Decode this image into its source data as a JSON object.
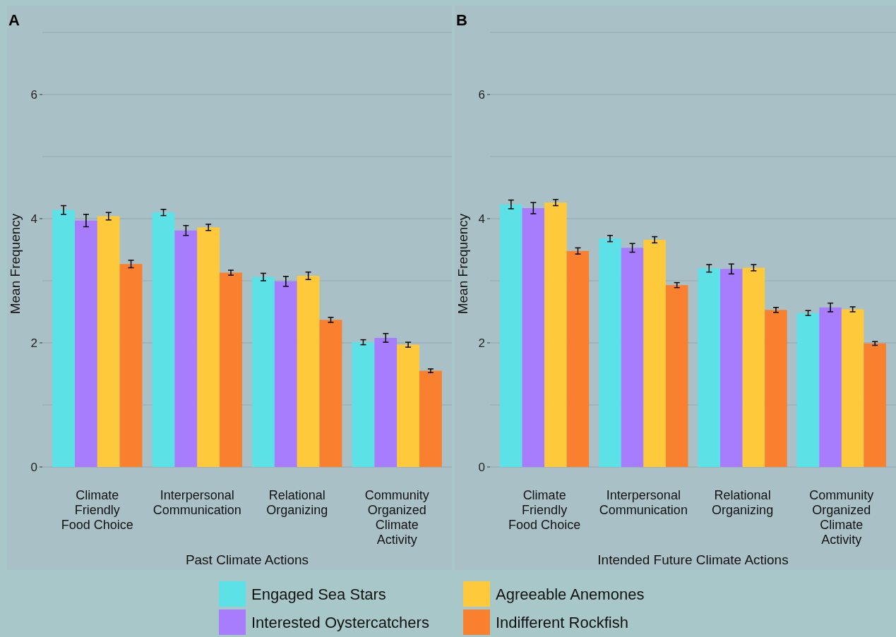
{
  "chart_data": [
    {
      "type": "bar",
      "title": "A",
      "xlabel": "Past Climate Actions",
      "ylabel": "Mean Frequency",
      "categories": [
        "Climate Friendly Food Choice",
        "Interpersonal Communication",
        "Relational Organizing",
        "Community Organized Climate Activity"
      ],
      "ylim": [
        0,
        7
      ],
      "yticks": [
        0,
        {
          "value": 1,
          "label": null
        },
        2,
        {
          "value": 3,
          "label": null
        },
        4,
        {
          "value": 5,
          "label": null
        },
        6,
        {
          "value": 7,
          "label": null
        }
      ],
      "grid": "y",
      "legend": "bottom",
      "series": [
        {
          "name": "Engaged Sea Stars",
          "color": "#5ce1e6",
          "values": [
            4.14,
            4.1,
            3.06,
            2.01
          ],
          "errors": [
            0.07,
            0.05,
            0.06,
            0.04
          ]
        },
        {
          "name": "Interested Oystercatchers",
          "color": "#a77cfd",
          "values": [
            3.97,
            3.81,
            2.99,
            2.08
          ],
          "errors": [
            0.1,
            0.08,
            0.08,
            0.07
          ]
        },
        {
          "name": "Agreeable Anemones",
          "color": "#ffc93c",
          "values": [
            4.04,
            3.86,
            3.08,
            1.97
          ],
          "errors": [
            0.06,
            0.05,
            0.06,
            0.04
          ]
        },
        {
          "name": "Indifferent Rockfish",
          "color": "#f9802e",
          "values": [
            3.27,
            3.13,
            2.37,
            1.55
          ],
          "errors": [
            0.06,
            0.04,
            0.04,
            0.03
          ]
        }
      ]
    },
    {
      "type": "bar",
      "title": "B",
      "xlabel": "Intended Future Climate Actions",
      "ylabel": "Mean Frequency",
      "categories": [
        "Climate Friendly Food Choice",
        "Interpersonal Communication",
        "Relational Organizing",
        "Community Organized Climate Activity"
      ],
      "ylim": [
        0,
        7
      ],
      "yticks": [
        0,
        {
          "value": 1,
          "label": null
        },
        2,
        {
          "value": 3,
          "label": null
        },
        4,
        {
          "value": 5,
          "label": null
        },
        6,
        {
          "value": 7,
          "label": null
        }
      ],
      "grid": "y",
      "series": [
        {
          "color": "#5ce1e6",
          "values": [
            4.23,
            3.68,
            3.2,
            2.48
          ],
          "errors": [
            0.07,
            0.05,
            0.06,
            0.04
          ]
        },
        {
          "color": "#a77cfd",
          "values": [
            4.17,
            3.53,
            3.19,
            2.57
          ],
          "errors": [
            0.09,
            0.07,
            0.08,
            0.07
          ]
        },
        {
          "color": "#ffc93c",
          "values": [
            4.26,
            3.66,
            3.21,
            2.54
          ],
          "errors": [
            0.05,
            0.05,
            0.05,
            0.04
          ]
        },
        {
          "color": "#f9802e",
          "values": [
            3.48,
            2.93,
            2.53,
            1.99
          ],
          "errors": [
            0.05,
            0.04,
            0.04,
            0.03
          ]
        }
      ]
    }
  ]
}
